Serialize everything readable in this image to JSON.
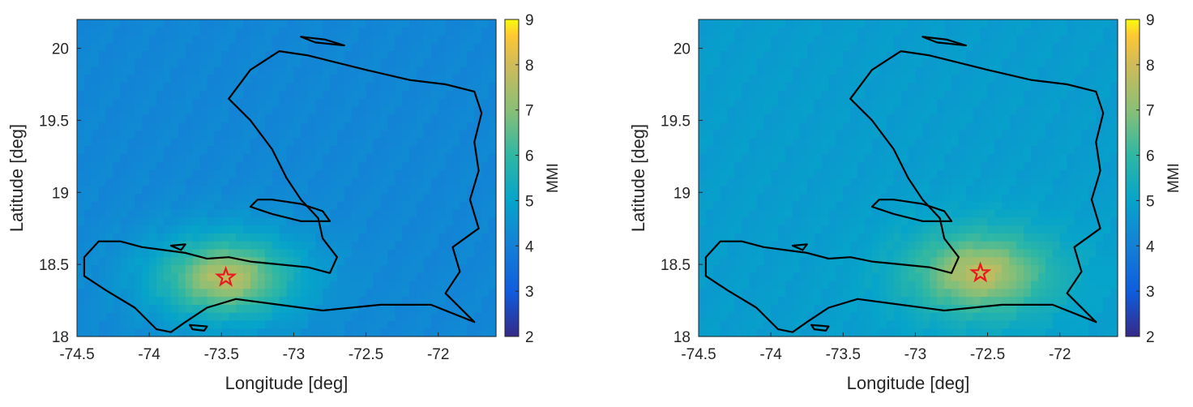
{
  "chart_data": [
    {
      "type": "heatmap",
      "title": "",
      "xlabel": "Longitude [deg]",
      "ylabel": "Latitude [deg]",
      "xlim": [
        -74.5,
        -71.6
      ],
      "ylim": [
        18,
        20.2
      ],
      "xticks": [
        -74.5,
        -74,
        -73.5,
        -73,
        -72.5,
        -72
      ],
      "xtick_labels": [
        "-74.5",
        "-74",
        "-73.5",
        "-73",
        "-72.5",
        "-72"
      ],
      "yticks": [
        18,
        18.5,
        19,
        19.5,
        20
      ],
      "ytick_labels": [
        "18",
        "18.5",
        "19",
        "19.5",
        "20"
      ],
      "colorbar": {
        "label": "MMI",
        "min": 2,
        "max": 9,
        "ticks": [
          "2",
          "3",
          "4",
          "5",
          "6",
          "7",
          "8",
          "9"
        ]
      },
      "epicenter": {
        "lon": -73.47,
        "lat": 18.41
      },
      "peak_mmi": 7.8,
      "background_mmi": 4.2,
      "marker_color": "#e8181f"
    },
    {
      "type": "heatmap",
      "title": "",
      "xlabel": "Longitude [deg]",
      "ylabel": "Latitude [deg]",
      "xlim": [
        -74.5,
        -71.6
      ],
      "ylim": [
        18,
        20.2
      ],
      "xticks": [
        -74.5,
        -74,
        -73.5,
        -73,
        -72.5,
        -72
      ],
      "xtick_labels": [
        "-74.5",
        "-74",
        "-73.5",
        "-73",
        "-72.5",
        "-72"
      ],
      "yticks": [
        18,
        18.5,
        19,
        19.5,
        20
      ],
      "ytick_labels": [
        "18",
        "18.5",
        "19",
        "19.5",
        "20"
      ],
      "colorbar": {
        "label": "MMI",
        "min": 2,
        "max": 9,
        "ticks": [
          "2",
          "3",
          "4",
          "5",
          "6",
          "7",
          "8",
          "9"
        ]
      },
      "epicenter": {
        "lon": -72.55,
        "lat": 18.44
      },
      "peak_mmi": 7.9,
      "background_mmi": 4.8,
      "marker_color": "#e8181f"
    }
  ]
}
